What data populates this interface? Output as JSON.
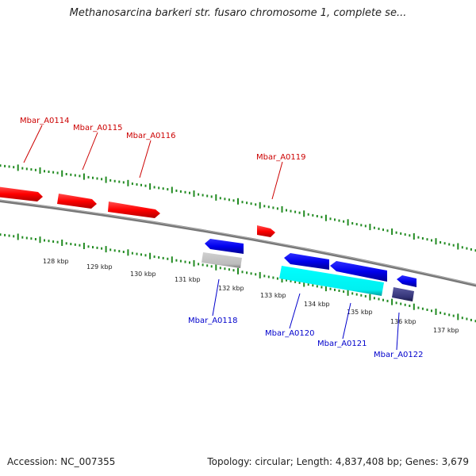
{
  "title": "Methanosarcina barkeri str. fusaro chromosome 1, complete se...",
  "accession": "Accession: NC_007355",
  "summary": "Topology: circular; Length: 4,837,408 bp; Genes: 3,679",
  "colors": {
    "forward_gene": "#ff0000",
    "reverse_gene": "#0000ff",
    "cyan_feature": "#00ffff",
    "grey_feature": "#c0c0c0",
    "navy_feature": "#333377",
    "backbone": "#777777",
    "tick": "#228b22",
    "forward_label": "#cc0000",
    "reverse_label": "#0000cc"
  },
  "kbp_ticks": [
    "128 kbp",
    "129 kbp",
    "130 kbp",
    "131 kbp",
    "132 kbp",
    "133 kbp",
    "134 kbp",
    "135 kbp",
    "136 kbp",
    "137 kbp"
  ],
  "forward_labels": [
    "Mbar_A0114",
    "Mbar_A0115",
    "Mbar_A0116",
    "Mbar_A0119"
  ],
  "reverse_labels": [
    "Mbar_A0118",
    "Mbar_A0120",
    "Mbar_A0121",
    "Mbar_A0122"
  ]
}
